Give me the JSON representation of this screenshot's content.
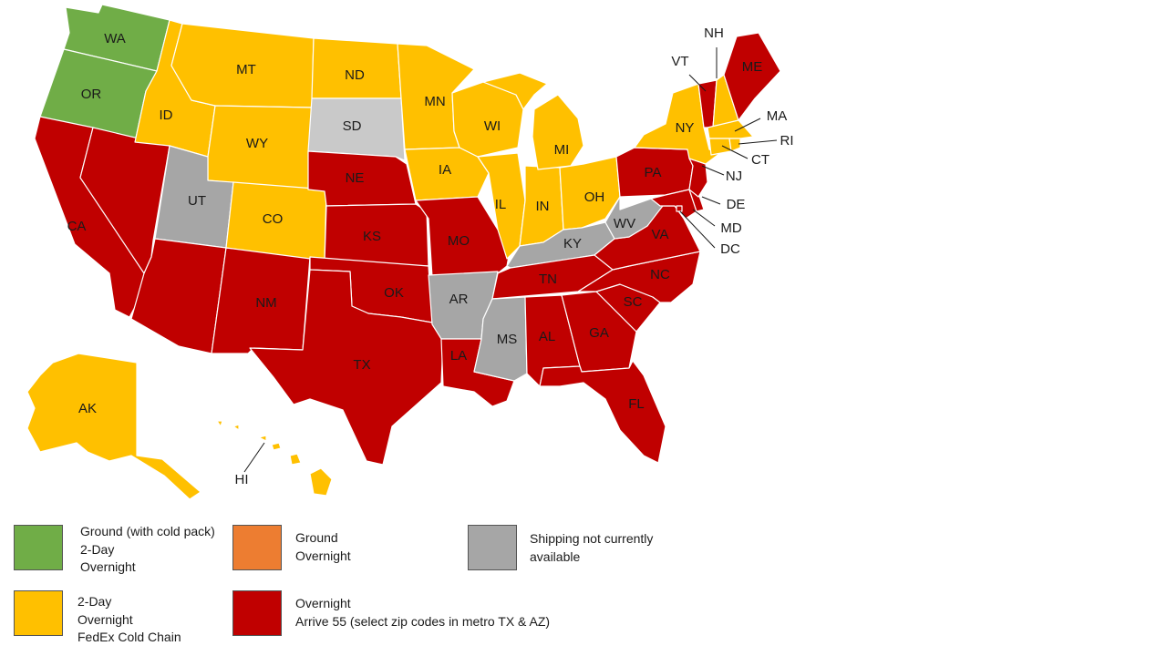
{
  "colors": {
    "green": "#70ad47",
    "yellow": "#ffc000",
    "orange": "#ed7d31",
    "red": "#c00000",
    "gray": "#a6a6a6",
    "lightgray": "#c9c9c9"
  },
  "states": {
    "WA": "WA",
    "OR": "OR",
    "CA": "CA",
    "NV": "",
    "ID": "ID",
    "MT": "MT",
    "WY": "WY",
    "UT": "UT",
    "AZ": "",
    "NM": "NM",
    "CO": "CO",
    "ND": "ND",
    "SD": "SD",
    "NE": "NE",
    "KS": "KS",
    "OK": "OK",
    "TX": "TX",
    "MN": "MN",
    "IA": "IA",
    "MO": "MO",
    "AR": "AR",
    "LA": "LA",
    "WI": "WI",
    "IL": "IL",
    "MS": "MS",
    "MI": "MI",
    "IN": "IN",
    "KY": "KY",
    "TN": "TN",
    "AL": "AL",
    "OH": "OH",
    "GA": "GA",
    "FL": "FL",
    "SC": "SC",
    "NC": "NC",
    "VA": "VA",
    "WV": "WV",
    "PA": "PA",
    "NY": "NY",
    "VT": "VT",
    "NH": "NH",
    "ME": "ME",
    "MA": "MA",
    "RI": "RI",
    "CT": "CT",
    "NJ": "NJ",
    "DE": "DE",
    "MD": "MD",
    "DC": "DC",
    "AK": "AK",
    "HI": "HI"
  },
  "legend": [
    {
      "color": "green",
      "lines": [
        "Ground (with cold pack)",
        "2-Day",
        "Overnight"
      ]
    },
    {
      "color": "orange",
      "lines": [
        "Ground",
        "Overnight"
      ]
    },
    {
      "color": "gray",
      "lines": [
        "Shipping not currently",
        "available"
      ]
    },
    {
      "color": "yellow",
      "lines": [
        "2-Day",
        "Overnight",
        "FedEx Cold Chain"
      ]
    },
    {
      "color": "red",
      "lines": [
        "Overnight",
        "Arrive 55 (select zip codes in metro TX & AZ)"
      ]
    }
  ]
}
